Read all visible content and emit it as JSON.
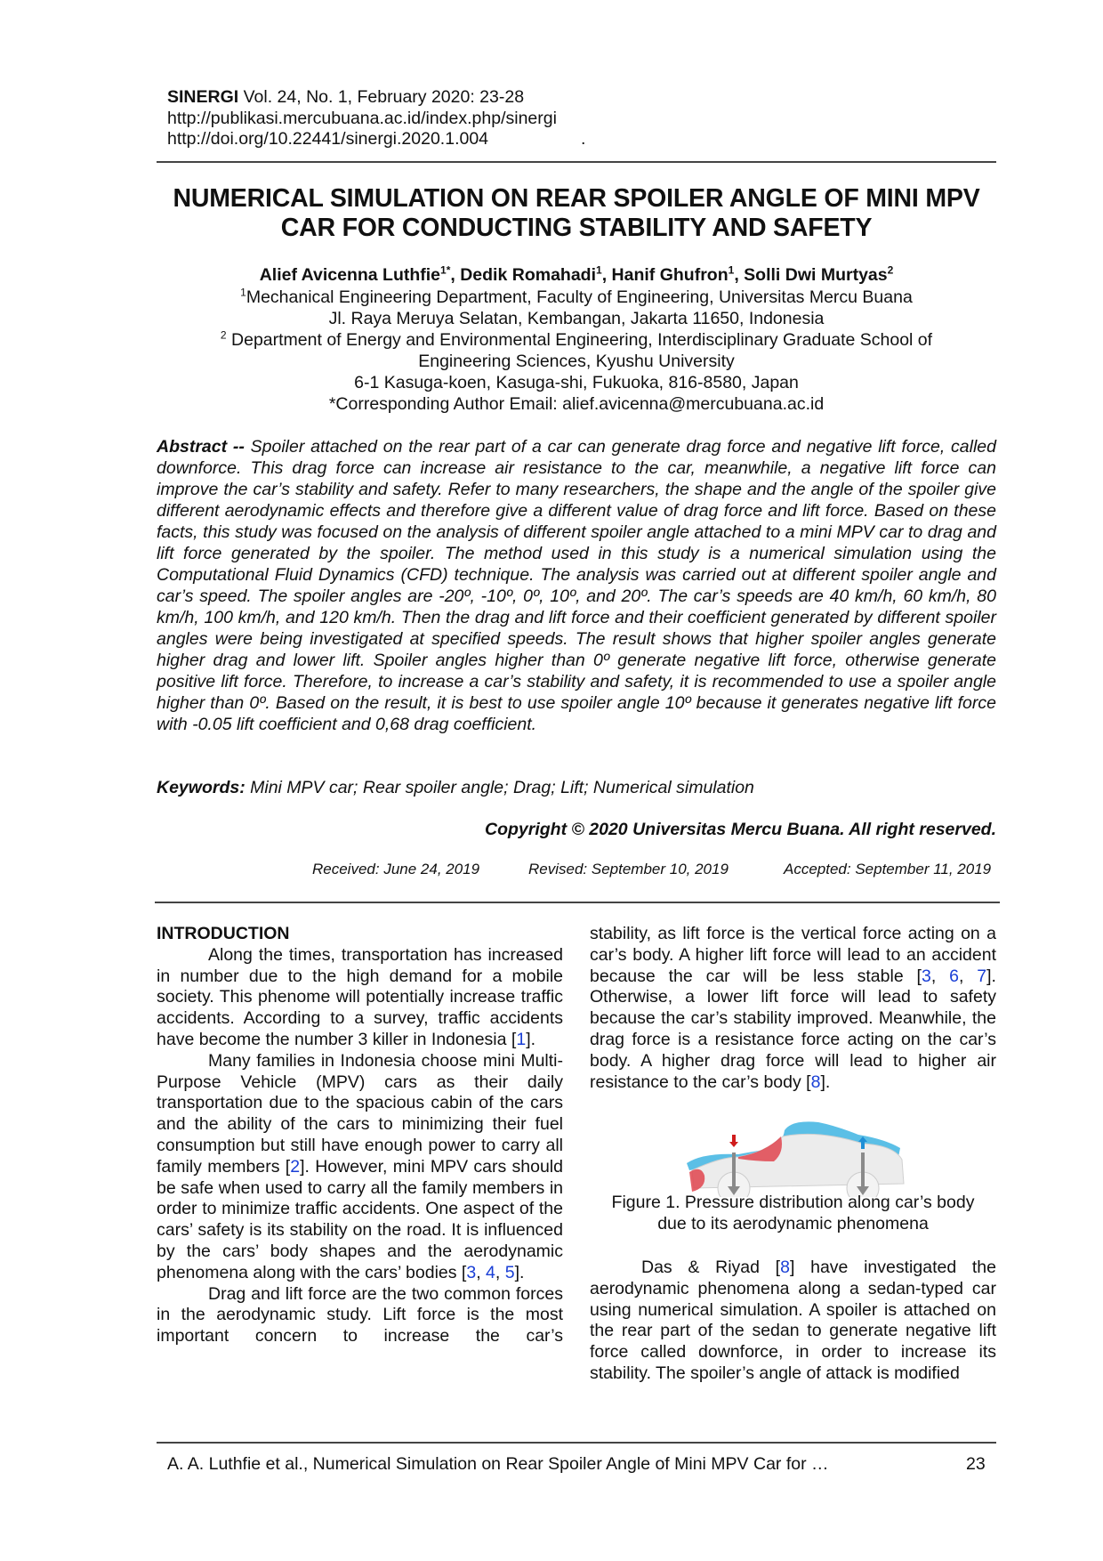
{
  "header": {
    "journal": "SINERGI",
    "issue": "Vol. 24, No. 1, February 2020: 23-28",
    "url": "http://publikasi.mercubuana.ac.id/index.php/sinergi",
    "doi": "http://doi.org/10.22441/sinergi.2020.1.004",
    "dot": "."
  },
  "title": {
    "line1": "NUMERICAL SIMULATION ON REAR SPOILER ANGLE OF MINI MPV",
    "line2": "CAR FOR CONDUCTING STABILITY AND SAFETY"
  },
  "authors": [
    {
      "name": "Alief Avicenna Luthfie",
      "sup": "1*",
      "sep": ", "
    },
    {
      "name": "Dedik Romahadi",
      "sup": "1",
      "sep": ", "
    },
    {
      "name": "Hanif Ghufron",
      "sup": "1",
      "sep": ", "
    },
    {
      "name": "Solli Dwi Murtyas",
      "sup": "2",
      "sep": ""
    }
  ],
  "affiliations": {
    "a1_sup": "1",
    "a1": "Mechanical Engineering Department, Faculty of Engineering, Universitas Mercu Buana",
    "a1_addr": "Jl. Raya Meruya Selatan, Kembangan, Jakarta 11650, Indonesia",
    "a2_sup": "2",
    "a2": " Department of Energy and Environmental Engineering, Interdisciplinary Graduate School of",
    "a2_b": "Engineering Sciences, Kyushu University",
    "a2_addr": "6-1 Kasuga-koen, Kasuga-shi, Fukuoka, 816-8580, Japan",
    "email": "*Corresponding Author Email: alief.avicenna@mercubuana.ac.id"
  },
  "abstract": {
    "label": "Abstract --",
    "text": " Spoiler attached on the rear part of a car can generate drag force and negative lift force, called downforce. This drag force can increase air resistance to the car, meanwhile, a negative lift force can improve the car’s stability and safety. Refer to many researchers, the shape and the angle of the spoiler give different aerodynamic effects and therefore give a different value of drag force and lift force. Based on these facts, this study was focused on the analysis of different spoiler angle attached to a mini MPV car to drag and lift force generated by the spoiler. The method used in this study is a numerical simulation using the Computational Fluid Dynamics (CFD) technique. The analysis was carried out at different spoiler angle and car’s speed. The spoiler angles are -20º, -10º, 0º, 10º, and 20º. The car’s speeds are 40 km/h, 60 km/h, 80 km/h, 100 km/h, and 120 km/h. Then the drag and lift force and their coefficient generated by different spoiler angles were being investigated at specified speeds. The result shows that higher spoiler angles generate higher drag and lower lift. Spoiler angles higher than 0º generate negative lift force, otherwise generate positive lift force. Therefore, to increase a car’s stability and safety, it is recommended to use a spoiler angle higher than 0º. Based on the result, it is best to use spoiler angle 10º because it generates negative lift force with -0.05 lift coefficient and 0,68 drag coefficient."
  },
  "keywords": {
    "label": "Keywords:",
    "text": " Mini MPV car; Rear spoiler angle; Drag; Lift; Numerical simulation"
  },
  "copyright": "Copyright © 2020 Universitas Mercu Buana. All right reserved.",
  "dates": {
    "received": "Received: June 24, 2019",
    "revised": "Revised: September 10, 2019",
    "accepted": "Accepted: September 11, 2019"
  },
  "body": {
    "section": "INTRODUCTION",
    "p1": "Along the times, transportation has increased in number due to the high demand for a mobile society. This phenome will potentially increase traffic accidents. According to a survey, traffic accidents have become the number 3 killer in Indonesia [",
    "p1_ref": "1",
    "p1_end": "].",
    "p2": "Many families in Indonesia choose mini Multi-Purpose Vehicle (MPV) cars as their daily transportation due to the spacious cabin of the cars and the ability of the cars to minimizing their fuel consumption but still have enough power to carry all family members [",
    "p2_ref": "2",
    "p2_mid": "]. However, mini MPV cars should be safe when used to carry all the family members in order to minimize traffic accidents. One aspect of the cars’ safety is its stability on the road. It is influenced by the cars’ body shapes and the aerodynamic phenomena along with the cars’ bodies [",
    "p2_refs": [
      "3",
      "4",
      "5"
    ],
    "p2_end": "].",
    "p3": "Drag and lift force are the two common forces in the aerodynamic study. Lift force is the most important concern to increase the car’s",
    "p4": "stability, as lift force is the vertical force acting on a car’s body. A higher lift force will lead to an accident because the car will be less stable [",
    "p4_refs": [
      "3",
      "6",
      "7"
    ],
    "p4_mid": "]. Otherwise, a lower lift force will lead to safety because the car’s stability improved. Meanwhile, the drag force is a resistance force acting on the car’s body. A higher drag force will lead to higher air resistance to the car’s body [",
    "p4_ref": "8",
    "p4_end": "].",
    "p5": "Das & Riyad [",
    "p5_ref": "8",
    "p5_rest": "] have investigated the aerodynamic phenomena along a sedan-typed car using numerical simulation. A spoiler is attached on the rear part of the sedan to generate negative lift force called downforce, in order to increase its stability. The spoiler’s angle of attack is modified"
  },
  "figure": {
    "caption_line1": "Figure 1. Pressure distribution along car’s body",
    "caption_line2": "due to its aerodynamic phenomena",
    "colors": {
      "high_pressure": "#e0454f",
      "low_pressure": "#5bbfe6",
      "force_arrow": "#8a8a8a"
    }
  },
  "footer": {
    "running_title": "A. A. Luthfie et al., Numerical Simulation on Rear Spoiler Angle of Mini MPV Car for …",
    "page": "23"
  }
}
